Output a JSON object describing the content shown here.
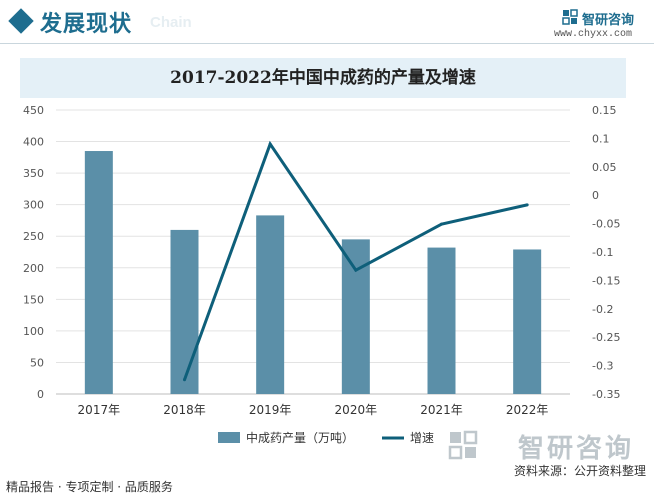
{
  "header": {
    "title": "发展现状",
    "watermark_word": "Chain",
    "brand": "智研咨询",
    "url": "www.chyxx.com",
    "accent_color": "#1e6d8f"
  },
  "chart_data": {
    "type": "bar",
    "title": "2017-2022年中国中成药的产量及增速",
    "categories": [
      "2017年",
      "2018年",
      "2019年",
      "2020年",
      "2021年",
      "2022年"
    ],
    "series": [
      {
        "name": "中成药产量（万吨）",
        "type": "bar",
        "axis": "left",
        "color": "#5b8fa8",
        "values": [
          385,
          260,
          283,
          245,
          232,
          229
        ]
      },
      {
        "name": "增速",
        "type": "line",
        "axis": "right",
        "color": "#0e5f7a",
        "values": [
          null,
          -0.325,
          0.09,
          -0.132,
          -0.051,
          -0.017
        ]
      }
    ],
    "y_left": {
      "min": 0,
      "max": 450,
      "step": 50,
      "ticks": [
        "0",
        "50",
        "100",
        "150",
        "200",
        "250",
        "300",
        "350",
        "400",
        "450"
      ]
    },
    "y_right": {
      "min": -0.35,
      "max": 0.15,
      "step": 0.05,
      "ticks": [
        "-0.35",
        "-0.3",
        "-0.25",
        "-0.2",
        "-0.15",
        "-0.1",
        "-0.05",
        "0",
        "0.05",
        "0.1",
        "0.15"
      ]
    },
    "grid": true,
    "legend_position": "bottom"
  },
  "footer": {
    "left_text": "精品报告 · 专项定制 · 品质服务",
    "source": "资料来源：公开资料整理",
    "big_brand": "智研咨询"
  }
}
